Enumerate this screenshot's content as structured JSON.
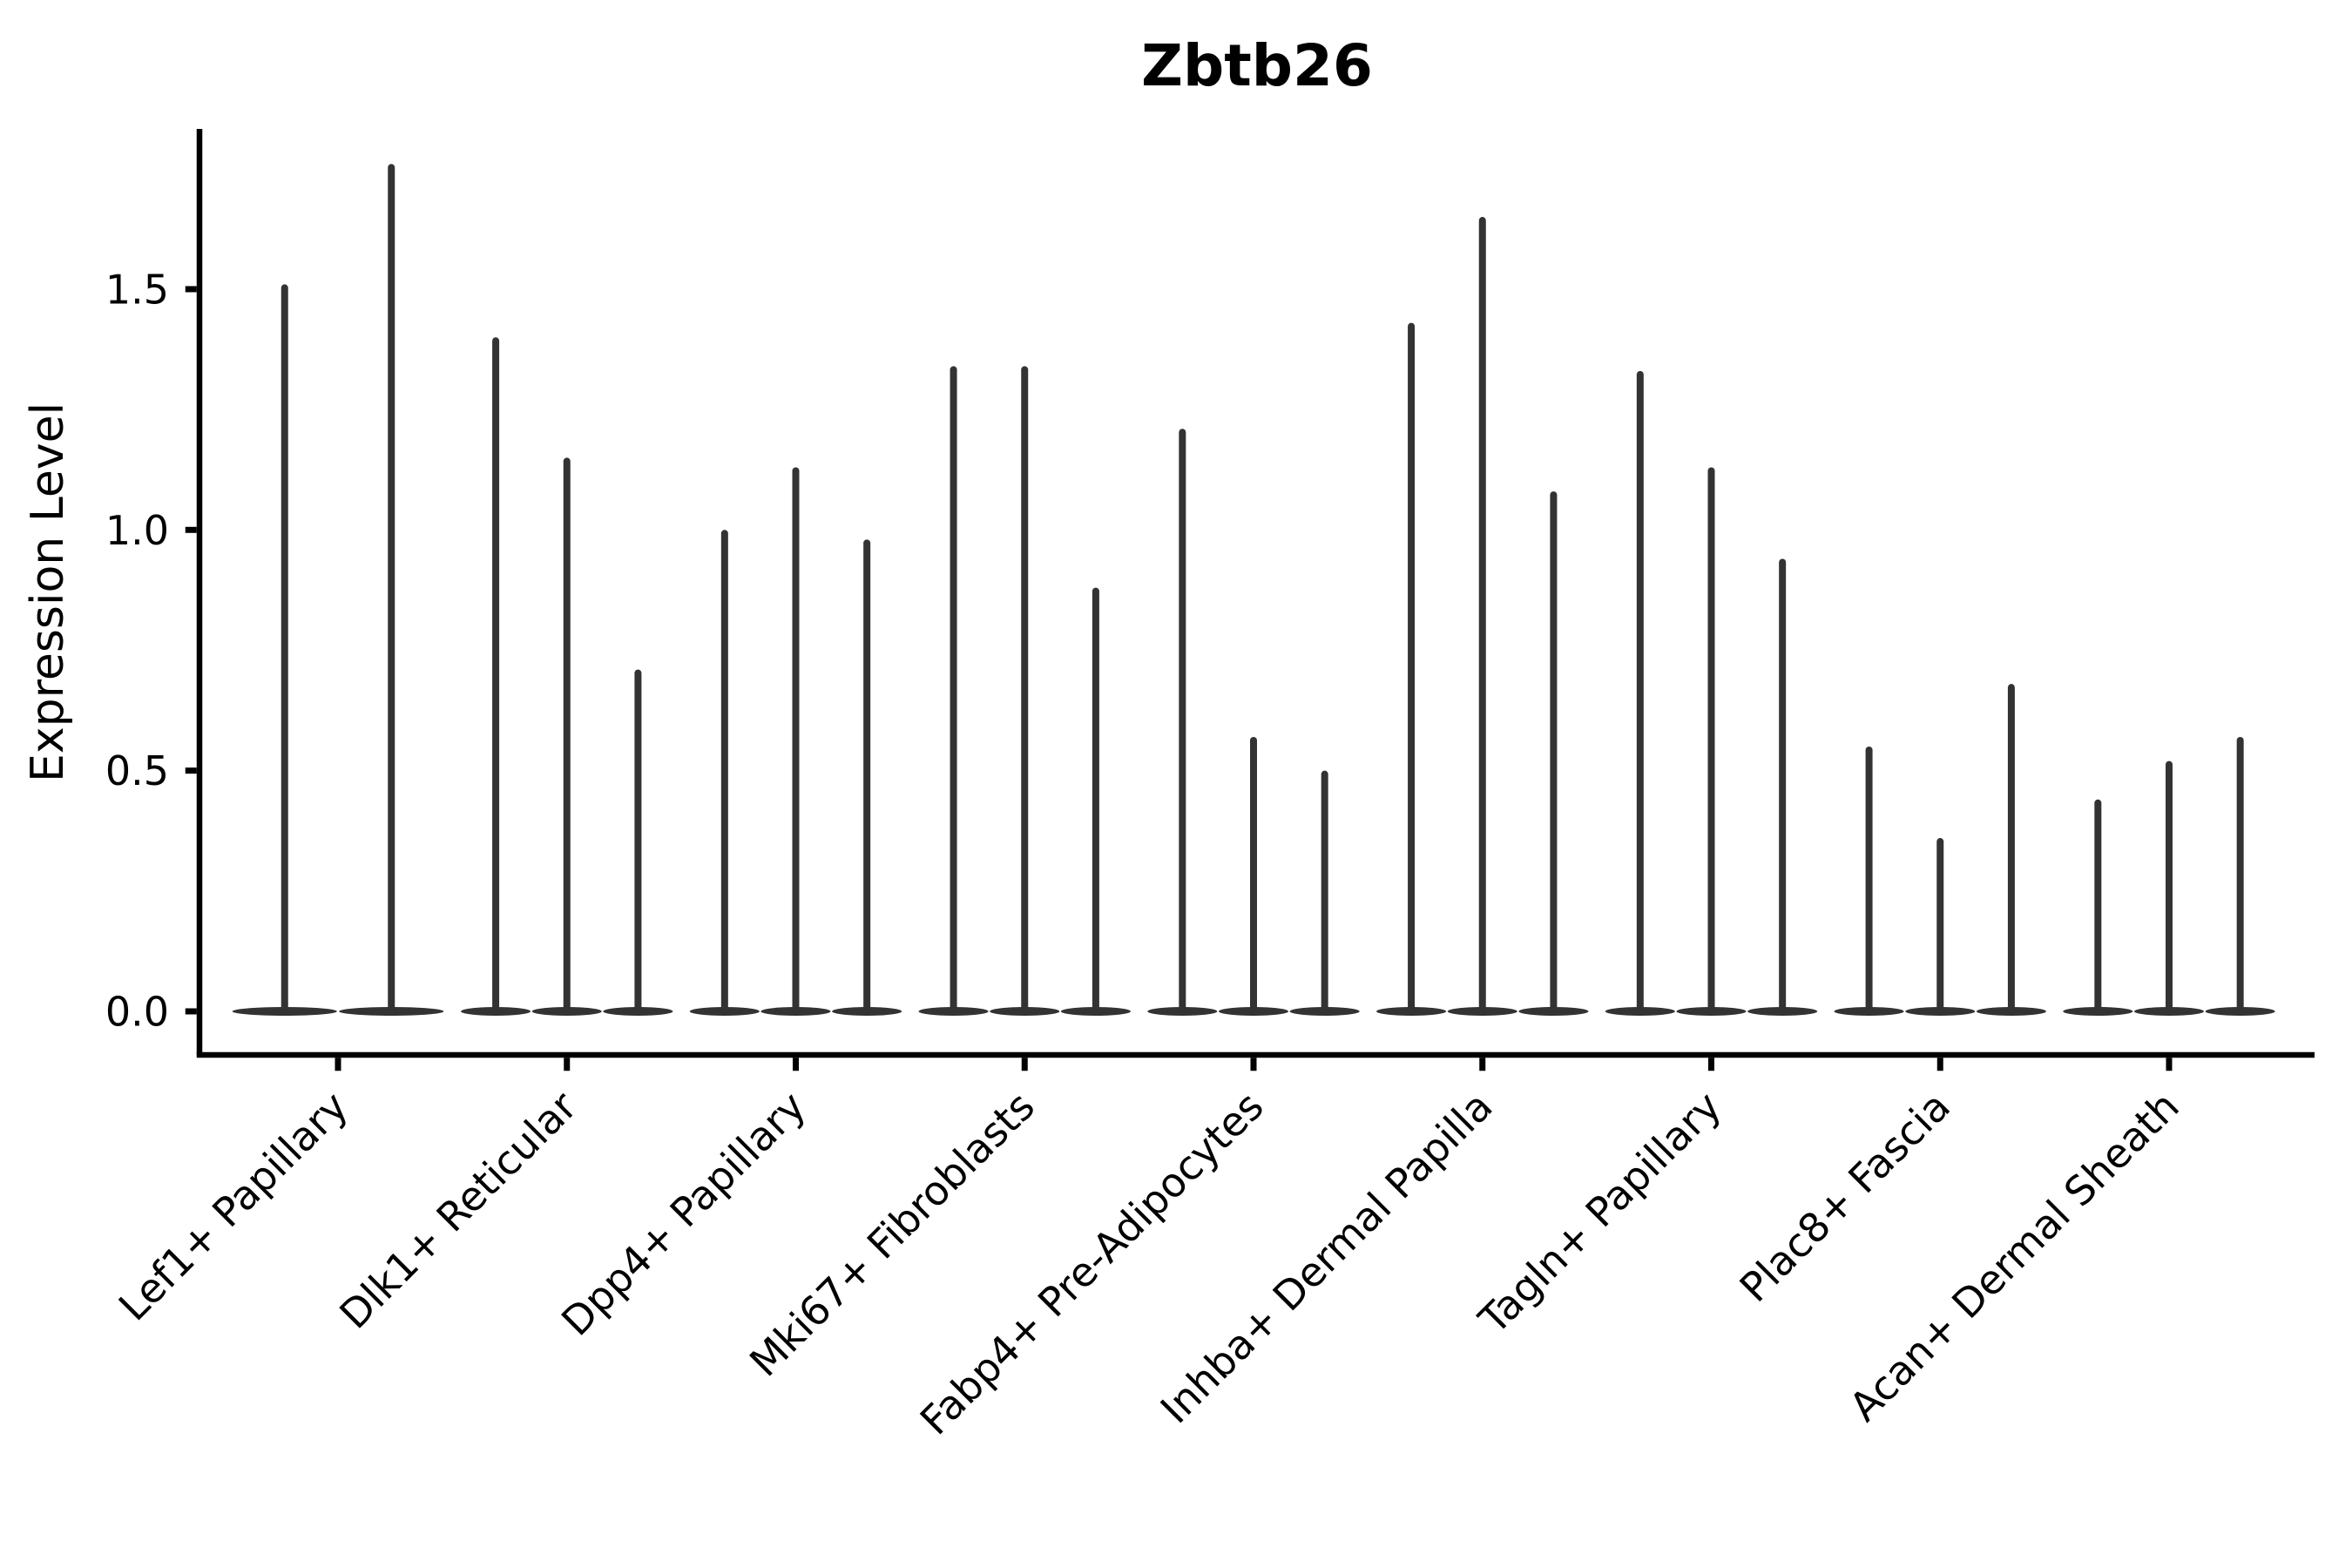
{
  "figure": {
    "background": "#ffffff",
    "violin_color": "#333333",
    "axis_color": "#000000",
    "text_color": "#000000"
  },
  "chart_data": {
    "type": "violin",
    "title": "Zbtb26",
    "xlabel": "",
    "ylabel": "Expression Level",
    "ylim": [
      0.0,
      1.83
    ],
    "yticks": [
      0.0,
      0.5,
      1.0,
      1.5
    ],
    "ytick_labels": [
      "0.0",
      "0.5",
      "1.0",
      "1.5"
    ],
    "grid": false,
    "legend_position": "none",
    "xtick_rotation_deg": 45,
    "categories": [
      "Lef1+ Papillary",
      "Dlk1+ Reticular",
      "Dpp4+ Papillary",
      "Mki67+ Fibroblasts",
      "Fabp4+ Pre-Adipocytes",
      "Inhba+ Dermal Papilla",
      "Tagln+ Papillary",
      "Plac8+ Fascia",
      "Acan+ Dermal Sheath"
    ],
    "series": [
      {
        "category": "Lef1+ Papillary",
        "violin_baseline": 0.0,
        "violin_maxes": [
          1.51,
          1.76
        ]
      },
      {
        "category": "Dlk1+ Reticular",
        "violin_baseline": 0.0,
        "violin_maxes": [
          1.4,
          1.15,
          0.71
        ]
      },
      {
        "category": "Dpp4+ Papillary",
        "violin_baseline": 0.0,
        "violin_maxes": [
          1.0,
          1.13,
          0.98
        ]
      },
      {
        "category": "Mki67+ Fibroblasts",
        "violin_baseline": 0.0,
        "violin_maxes": [
          1.34,
          1.34,
          0.88
        ]
      },
      {
        "category": "Fabp4+ Pre-Adipocytes",
        "violin_baseline": 0.0,
        "violin_maxes": [
          1.21,
          0.57,
          0.5
        ]
      },
      {
        "category": "Inhba+ Dermal Papilla",
        "violin_baseline": 0.0,
        "violin_maxes": [
          1.43,
          1.65,
          1.08
        ]
      },
      {
        "category": "Tagln+ Papillary",
        "violin_baseline": 0.0,
        "violin_maxes": [
          1.33,
          1.13,
          0.94
        ]
      },
      {
        "category": "Plac8+ Fascia",
        "violin_baseline": 0.0,
        "violin_maxes": [
          0.55,
          0.36,
          0.68
        ]
      },
      {
        "category": "Acan+ Dermal Sheath",
        "violin_baseline": 0.0,
        "violin_maxes": [
          0.44,
          0.52,
          0.57
        ]
      }
    ]
  }
}
